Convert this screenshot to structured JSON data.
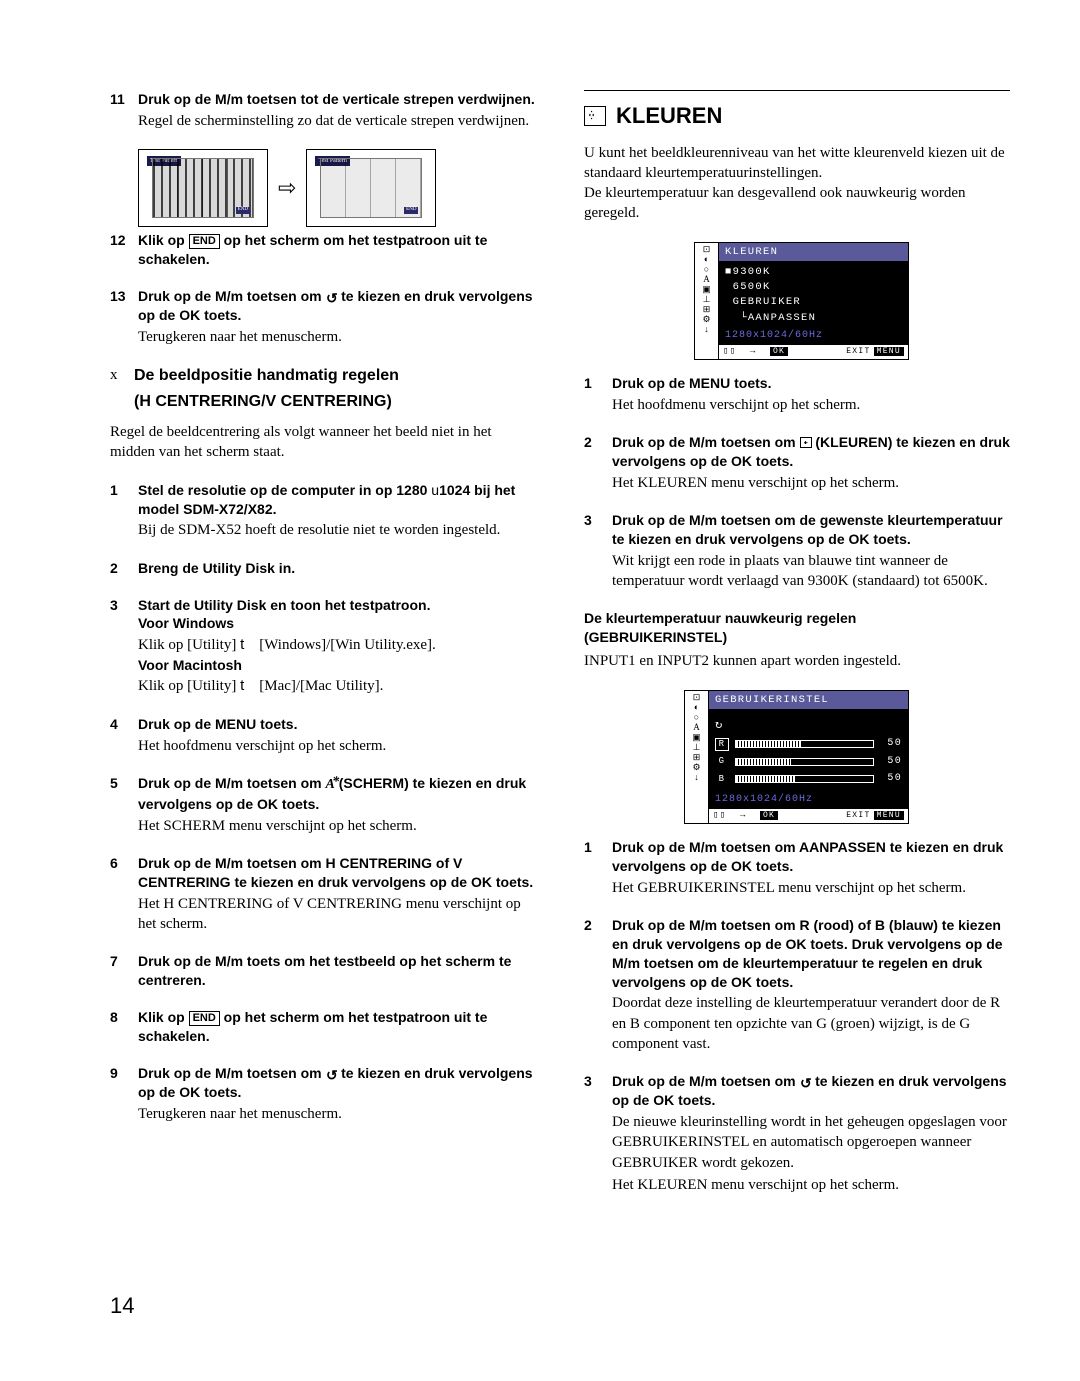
{
  "page_number": "14",
  "left": {
    "s11": {
      "num": "11",
      "title_a": "Druk op de ",
      "title_b": "M",
      "title_c": "/",
      "title_d": "m",
      "title_e": " toetsen tot de verticale strepen verdwijnen.",
      "desc": "Regel de scherminstelling zo dat de verticale strepen verdwijnen."
    },
    "pattern": {
      "label1": "Test Pattern",
      "label2": "Test Pattern",
      "end": "END"
    },
    "s12": {
      "num": "12",
      "title_a": "Klik op ",
      "end": "END",
      "title_b": " op het scherm om het testpatroon uit te schakelen."
    },
    "s13": {
      "num": "13",
      "title_a": "Druk op de ",
      "title_b": "M",
      "title_c": "/",
      "title_d": "m",
      "title_e": " toetsen om ",
      "title_f": " te kiezen en druk vervolgens op de OK toets.",
      "desc": "Terugkeren naar het menuscherm."
    },
    "sec": {
      "marker": "x",
      "line1": "De beeldpositie handmatig regelen",
      "line2": "(H CENTRERING/V CENTRERING)",
      "para": "Regel de beeldcentrering als volgt wanneer het beeld niet in het midden van het scherm staat."
    },
    "s1": {
      "num": "1",
      "title_a": "Stel de resolutie op de computer in op 1280 ",
      "title_b": "u",
      "title_c": "1024 bij het model SDM-X72/X82.",
      "desc": "Bij de SDM-X52 hoeft de resolutie niet te worden ingesteld."
    },
    "s2": {
      "num": "2",
      "title": "Breng de Utility Disk in."
    },
    "s3": {
      "num": "3",
      "title": "Start de Utility Disk en toon het testpatroon.",
      "w_head": "Voor Windows",
      "w_line_a": "Klik op [Utility] ",
      "w_t": "t",
      "w_line_b": " [Windows]/[Win Utility.exe].",
      "m_head": "Voor Macintosh",
      "m_line_a": "Klik op [Utility] ",
      "m_t": "t",
      "m_line_b": " [Mac]/[Mac Utility]."
    },
    "s4": {
      "num": "4",
      "title": "Druk op de MENU toets.",
      "desc": "Het hoofdmenu verschijnt op het scherm."
    },
    "s5": {
      "num": "5",
      "a": "Druk op de ",
      "b": "M",
      "c": "/",
      "d": "m",
      "e": " toetsen om ",
      "f": " (SCHERM) te kiezen en druk vervolgens op de OK toets.",
      "desc": "Het SCHERM menu verschijnt op het scherm."
    },
    "s6": {
      "num": "6",
      "a": "Druk op de ",
      "b": "M",
      "c": "/",
      "d": "m",
      "e": " toetsen om  H CENTRERING of V CENTRERING te kiezen en druk vervolgens op de OK toets.",
      "desc": "Het H CENTRERING of V CENTRERING menu verschijnt op het scherm."
    },
    "s7": {
      "num": "7",
      "a": "Druk op de ",
      "b": "M",
      "c": "/",
      "d": "m",
      "e": " toets om het testbeeld op het scherm te centreren."
    },
    "s8": {
      "num": "8",
      "a": "Klik op ",
      "end": "END",
      "b": " op het scherm om het testpatroon uit te schakelen."
    },
    "s9": {
      "num": "9",
      "a": "Druk op de ",
      "b": "M",
      "c": "/",
      "d": "m",
      "e": " toetsen om ",
      "f": " te kiezen en druk vervolgens op de OK toets.",
      "desc": "Terugkeren naar het menuscherm."
    }
  },
  "right": {
    "title": "KLEUREN",
    "intro1": "U kunt het beeldkleurenniveau van het witte kleurenveld kiezen uit de standaard kleurtemperatuurinstellingen.",
    "intro2": "De kleurtemperatuur kan desgevallend ook nauwkeurig worden geregeld.",
    "osd1": {
      "title": "KLEUREN",
      "opt1": "9300K",
      "opt2": "6500K",
      "opt3": "GEBRUIKER",
      "opt4": "AANPASSEN",
      "res": "1280x1024/60Hz",
      "ok": "OK",
      "exit": "EXIT",
      "menu": "MENU"
    },
    "s1": {
      "num": "1",
      "title": "Druk op de MENU toets.",
      "desc": "Het hoofdmenu verschijnt op het scherm."
    },
    "s2": {
      "num": "2",
      "a": "Druk op de ",
      "b": "M",
      "c": "/",
      "d": "m",
      "e": " toetsen om ",
      "f": " (KLEUREN) te kiezen en druk vervolgens op de OK toets.",
      "desc": "Het KLEUREN menu verschijnt op het scherm."
    },
    "s3": {
      "num": "3",
      "a": "Druk op de ",
      "b": "M",
      "c": "/",
      "d": "m",
      "e": " toetsen om de gewenste kleurtemperatuur te kiezen en druk vervolgens op de OK toets.",
      "desc": "Wit krijgt een rode in plaats van blauwe tint wanneer de temperatuur wordt verlaagd van 9300K (standaard) tot 6500K."
    },
    "sub": {
      "line1": "De kleurtemperatuur nauwkeurig regelen",
      "line2": "(GEBRUIKERINSTEL)",
      "para": "INPUT1 en INPUT2 kunnen apart worden ingesteld."
    },
    "osd2": {
      "title": "GEBRUIKERINSTEL",
      "r": "R",
      "g": "G",
      "b": "B",
      "val": "50",
      "rfill": 48,
      "gfill": 40,
      "bfill": 44,
      "res": "1280x1024/60Hz",
      "ok": "OK",
      "exit": "EXIT",
      "menu": "MENU"
    },
    "bs1": {
      "num": "1",
      "a": "Druk op de ",
      "b": "M",
      "c": "/",
      "d": "m",
      "e": " toetsen om AANPASSEN te kiezen en druk vervolgens op de OK toets.",
      "desc": "Het GEBRUIKERINSTEL menu verschijnt op het scherm."
    },
    "bs2": {
      "num": "2",
      "a": "Druk op de ",
      "b": "M",
      "c": "/",
      "d": "m",
      "e": " toetsen om  R (rood) of B (blauw) te kiezen en druk vervolgens op de OK toets. Druk vervolgens op de ",
      "f": "M",
      "g": "/",
      "h": "m",
      "i": " toetsen om de kleurtemperatuur te regelen en druk vervolgens op de OK toets.",
      "desc": "Doordat deze instelling de kleurtemperatuur verandert door de R en B component ten opzichte van G (groen) wijzigt, is de G component vast."
    },
    "bs3": {
      "num": "3",
      "a": "Druk op de ",
      "b": "M",
      "c": "/",
      "d": "m",
      "e": " toetsen om ",
      "f": " te kiezen en druk vervolgens op de OK toets.",
      "desc1": "De nieuwe kleurinstelling wordt in het geheugen opgeslagen voor GEBRUIKERINSTEL en automatisch opgeroepen wanneer GEBRUIKER wordt gekozen.",
      "desc2": "Het KLEUREN menu verschijnt op het scherm."
    }
  }
}
